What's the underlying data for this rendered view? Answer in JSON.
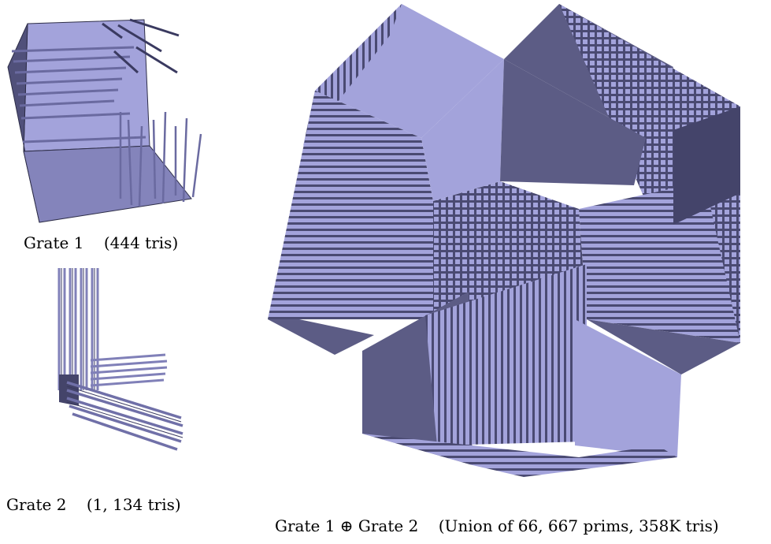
{
  "captions": {
    "grate1": "Grate 1    (444 tris)",
    "grate2": "Grate 2    (1, 134 tris)",
    "union": "Grate 1 ⊕ Grate 2    (Union of 66, 667 prims, 358K tris)"
  },
  "colors": {
    "light": "#a3a3db",
    "mid": "#8080b8",
    "dark": "#5c5c85",
    "darker": "#44446a",
    "edge": "#2e2e48"
  }
}
